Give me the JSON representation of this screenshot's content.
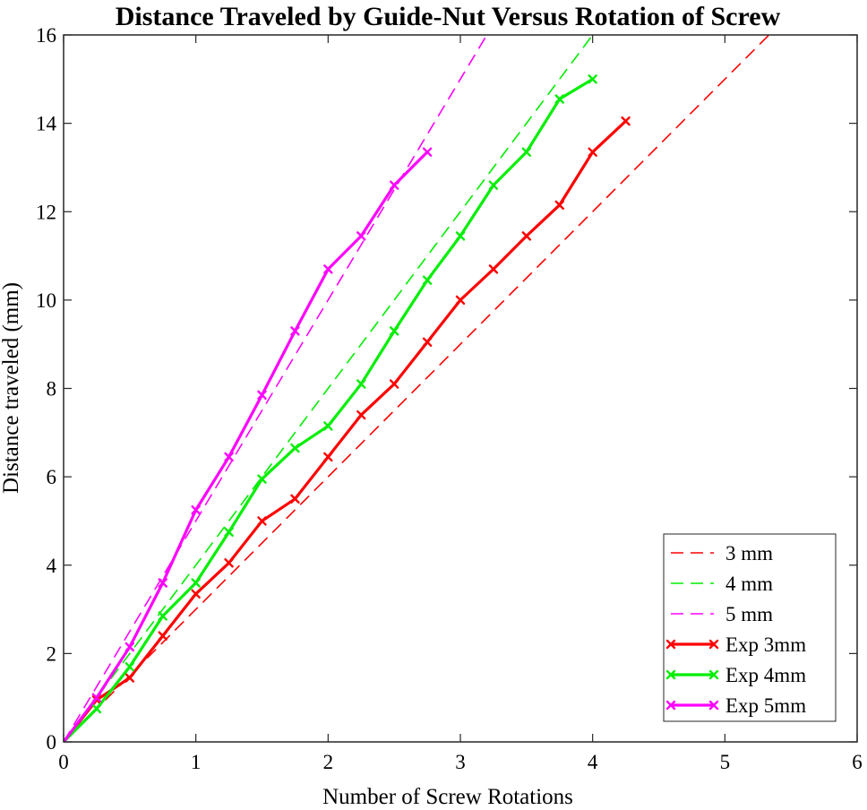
{
  "chart_data": {
    "type": "line",
    "title": "Distance Traveled by Guide-Nut Versus Rotation of Screw",
    "xlabel": "Number of Screw Rotations",
    "ylabel": "Distance traveled (mm)",
    "xlim": [
      0,
      6
    ],
    "ylim": [
      0,
      16
    ],
    "xticks": [
      0,
      1,
      2,
      3,
      4,
      5,
      6
    ],
    "yticks": [
      0,
      2,
      4,
      6,
      8,
      10,
      12,
      14,
      16
    ],
    "grid": false,
    "legend_position": "bottom-right",
    "series": [
      {
        "name": "3 mm",
        "style": "dashed",
        "color": "#ff0000",
        "marker": "none",
        "x": [
          0,
          5.4
        ],
        "y": [
          0,
          16.2
        ]
      },
      {
        "name": "4 mm",
        "style": "dashed",
        "color": "#00ee00",
        "marker": "none",
        "x": [
          0,
          4.0
        ],
        "y": [
          0,
          16.0
        ]
      },
      {
        "name": "5 mm",
        "style": "dashed",
        "color": "#ff00ff",
        "marker": "none",
        "x": [
          0,
          3.2
        ],
        "y": [
          0,
          16.0
        ]
      },
      {
        "name": "Exp 3mm",
        "style": "solid",
        "color": "#ff0000",
        "marker": "x",
        "x": [
          0,
          0.25,
          0.5,
          0.75,
          1,
          1.25,
          1.5,
          1.75,
          2,
          2.25,
          2.5,
          2.75,
          3,
          3.25,
          3.5,
          3.75,
          4,
          4.25
        ],
        "y": [
          0,
          0.95,
          1.45,
          2.4,
          3.35,
          4.05,
          5.0,
          5.5,
          6.45,
          7.4,
          8.1,
          9.05,
          10.0,
          10.7,
          11.45,
          12.15,
          13.35,
          14.05
        ]
      },
      {
        "name": "Exp 4mm",
        "style": "solid",
        "color": "#00ee00",
        "marker": "x",
        "x": [
          0,
          0.25,
          0.5,
          0.75,
          1,
          1.25,
          1.5,
          1.75,
          2,
          2.25,
          2.5,
          2.75,
          3,
          3.25,
          3.5,
          3.75,
          4
        ],
        "y": [
          0,
          0.75,
          1.7,
          2.85,
          3.6,
          4.75,
          5.95,
          6.65,
          7.15,
          8.1,
          9.3,
          10.45,
          11.45,
          12.6,
          13.35,
          14.55,
          15.0
        ]
      },
      {
        "name": "Exp 5mm",
        "style": "solid",
        "color": "#ff00ff",
        "marker": "x",
        "x": [
          0,
          0.25,
          0.5,
          0.75,
          1,
          1.25,
          1.5,
          1.75,
          2,
          2.25,
          2.5,
          2.75
        ],
        "y": [
          0,
          1.0,
          2.15,
          3.6,
          5.25,
          6.45,
          7.85,
          9.3,
          10.7,
          11.45,
          12.6,
          13.35
        ]
      }
    ]
  }
}
